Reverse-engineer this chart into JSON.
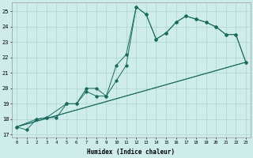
{
  "background_color": "#ceecea",
  "grid_color": "#aed4d0",
  "line_color": "#1a6b5e",
  "xlabel": "Humidex (Indice chaleur)",
  "xlim": [
    -0.5,
    23.5
  ],
  "ylim": [
    16.8,
    25.6
  ],
  "yticks": [
    17,
    18,
    19,
    20,
    21,
    22,
    23,
    24,
    25
  ],
  "xticks": [
    0,
    1,
    2,
    3,
    4,
    5,
    6,
    7,
    8,
    9,
    10,
    11,
    12,
    13,
    14,
    15,
    16,
    17,
    18,
    19,
    20,
    21,
    22,
    23
  ],
  "xtick_labels": [
    "0",
    "1",
    "2",
    "3",
    "4",
    "5",
    "6",
    "7",
    "8",
    "9",
    "10",
    "11",
    "12",
    "13",
    "14",
    "15",
    "16",
    "17",
    "18",
    "19",
    "20",
    "21",
    "22",
    "23"
  ],
  "line1_x": [
    0,
    1,
    2,
    3,
    4,
    5,
    6,
    7,
    8,
    9,
    10,
    11,
    12,
    13,
    14,
    15,
    16,
    17,
    18,
    19,
    20,
    21,
    22,
    23
  ],
  "line1_y": [
    17.5,
    17.3,
    18.0,
    18.1,
    18.1,
    19.0,
    19.0,
    19.8,
    19.5,
    19.5,
    21.5,
    22.2,
    25.3,
    24.8,
    23.2,
    23.6,
    24.3,
    24.7,
    24.5,
    24.3,
    24.0,
    23.5,
    23.5,
    21.7
  ],
  "line2_x": [
    0,
    2,
    3,
    5,
    6,
    7,
    8,
    9,
    10,
    11,
    12,
    13,
    14,
    15,
    16,
    17,
    18,
    19,
    20,
    21,
    22,
    23
  ],
  "line2_y": [
    17.5,
    18.0,
    18.1,
    19.0,
    19.0,
    20.0,
    20.0,
    19.5,
    20.5,
    21.5,
    25.3,
    24.8,
    23.2,
    23.6,
    24.3,
    24.7,
    24.5,
    24.3,
    24.0,
    23.5,
    23.5,
    21.7
  ],
  "line3_x": [
    0,
    23
  ],
  "line3_y": [
    17.5,
    21.7
  ],
  "line4_x": [
    0,
    23
  ],
  "line4_y": [
    17.5,
    21.7
  ]
}
